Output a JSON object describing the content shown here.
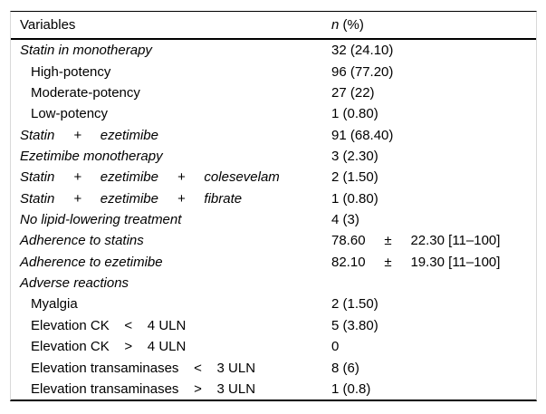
{
  "table": {
    "header": {
      "col1": "Variables",
      "col2_n": "n",
      "col2_rest": " (%)"
    },
    "rows": [
      {
        "label": "Statin in monotherapy",
        "value": "32 (24.10)"
      },
      {
        "label": "High-potency",
        "value": "96 (77.20)"
      },
      {
        "label": "Moderate-potency",
        "value": "27 (22)"
      },
      {
        "label": "Low-potency",
        "value": "1 (0.80)"
      },
      {
        "label": "Statin     +     ezetimibe",
        "value": "91 (68.40)"
      },
      {
        "label": "Ezetimibe monotherapy",
        "value": "3 (2.30)"
      },
      {
        "label": "Statin     +     ezetimibe     +     colesevelam",
        "value": "2 (1.50)"
      },
      {
        "label": "Statin     +     ezetimibe     +     fibrate",
        "value": "1 (0.80)"
      },
      {
        "label": "No lipid-lowering treatment",
        "value": "4 (3)"
      },
      {
        "label": "Adherence to statins",
        "value": "78.60     ±     22.30 [11–100]"
      },
      {
        "label": "Adherence to ezetimibe",
        "value": "82.10     ±     19.30 [11–100]"
      },
      {
        "label": "Adverse reactions",
        "value": ""
      },
      {
        "label": "Myalgia",
        "value": "2 (1.50)"
      },
      {
        "label": "Elevation CK    <    4 ULN",
        "value": "5 (3.80)"
      },
      {
        "label": "Elevation CK    >    4 ULN",
        "value": "0"
      },
      {
        "label": "Elevation transaminases    <    3 ULN",
        "value": "8 (6)"
      },
      {
        "label": "Elevation transaminases    >    3 ULN",
        "value": "1 (0.8)"
      }
    ]
  },
  "colors": {
    "text": "#000000",
    "background": "#ffffff",
    "rule": "#000000",
    "side_border": "#d9d9d9"
  }
}
